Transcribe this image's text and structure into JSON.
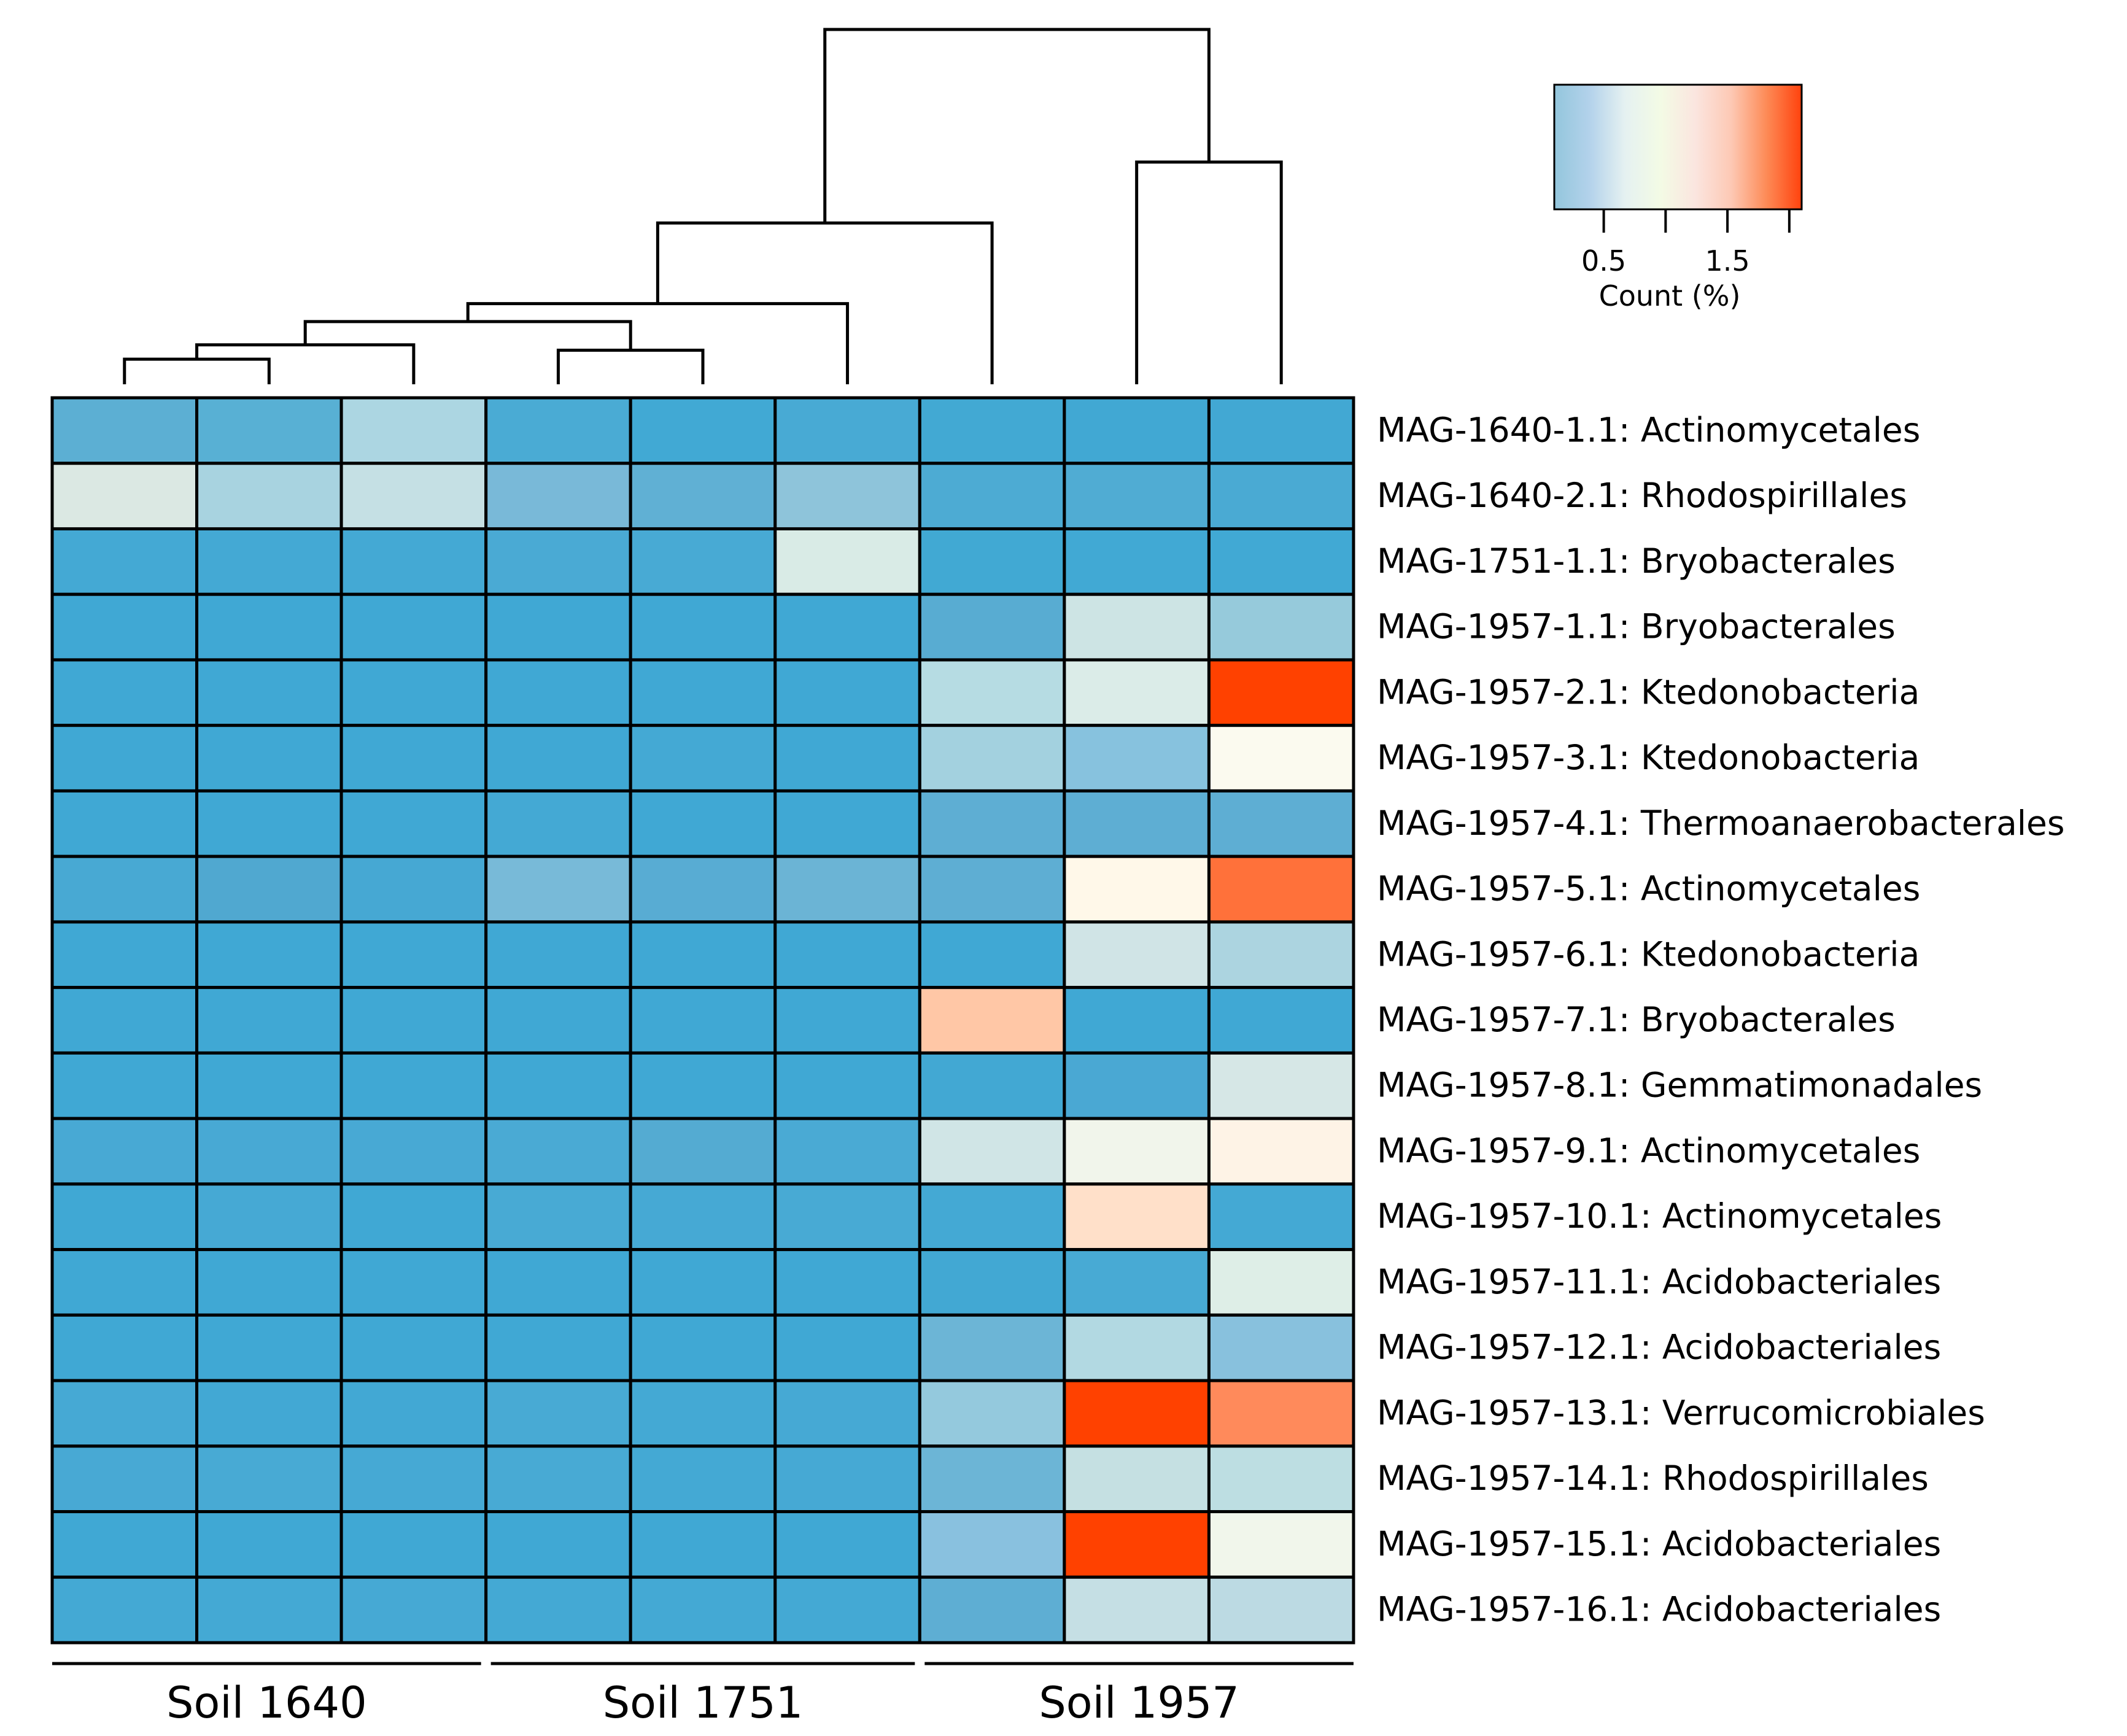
{
  "chart_data": {
    "type": "heatmap",
    "title": "",
    "colorbar": {
      "label": "Count (%)",
      "ticks": [
        0.5,
        1.5
      ],
      "tick_labels": [
        "0.5",
        "1.5"
      ],
      "minor_ticks": [
        1.0,
        2.0
      ],
      "range": [
        0.1,
        2.1
      ],
      "colors": [
        "#93c6dc",
        "#b3d2eb",
        "#e5f1f1",
        "#f3fbe5",
        "#fbe5df",
        "#fdc9b5",
        "#fd8b57",
        "#ff420d"
      ]
    },
    "groups": [
      {
        "label": "Soil 1640",
        "columns": [
          0,
          1,
          2
        ]
      },
      {
        "label": "Soil 1751",
        "columns": [
          3,
          4,
          5
        ]
      },
      {
        "label": "Soil 1957",
        "columns": [
          6,
          7,
          8
        ]
      }
    ],
    "rows": [
      "MAG-1640-1.1: Actinomycetales",
      "MAG-1640-2.1: Rhodospirillales",
      "MAG-1751-1.1: Bryobacterales",
      "MAG-1957-1.1: Bryobacterales",
      "MAG-1957-2.1: Ktedonobacteria",
      "MAG-1957-3.1: Ktedonobacteria",
      "MAG-1957-4.1: Thermoanaerobacterales",
      "MAG-1957-5.1: Actinomycetales",
      "MAG-1957-6.1: Ktedonobacteria",
      "MAG-1957-7.1: Bryobacterales",
      "MAG-1957-8.1: Gemmatimonadales",
      "MAG-1957-9.1: Actinomycetales",
      "MAG-1957-10.1: Actinomycetales",
      "MAG-1957-11.1: Acidobacteriales",
      "MAG-1957-12.1: Acidobacteriales",
      "MAG-1957-13.1: Verrucomicrobiales",
      "MAG-1957-14.1: Rhodospirillales",
      "MAG-1957-15.1: Acidobacteriales",
      "MAG-1957-16.1: Acidobacteriales"
    ],
    "cell_colors": [
      [
        "#5cafd3",
        "#58b0d4",
        "#acd6e2",
        "#4aabd4",
        "#41a9d4",
        "#48aad4",
        "#42a9d3",
        "#41a8d3",
        "#42a8d3"
      ],
      [
        "#dbe8e3",
        "#a8d3e0",
        "#c5e0e4",
        "#79b9d8",
        "#60b0d4",
        "#8ec4da",
        "#4dabd3",
        "#50acd3",
        "#4aaad3"
      ],
      [
        "#44a9d4",
        "#44a9d4",
        "#44a9d4",
        "#4aaad4",
        "#48aad4",
        "#d9ebe6",
        "#41a9d3",
        "#41a9d4",
        "#41a9d4"
      ],
      [
        "#40a8d4",
        "#40a8d4",
        "#40a8d4",
        "#40a8d4",
        "#40a8d4",
        "#40a8d4",
        "#58acd2",
        "#cde4e4",
        "#96cadb"
      ],
      [
        "#40a8d4",
        "#40a8d4",
        "#40a8d4",
        "#40a8d4",
        "#40a8d4",
        "#40a8d4",
        "#b6dce3",
        "#dbece8",
        "#ff4100"
      ],
      [
        "#40a8d4",
        "#40a8d4",
        "#40a8d4",
        "#40a8d4",
        "#44a9d4",
        "#40a8d4",
        "#a3d1df",
        "#87c2de",
        "#fbfaef"
      ],
      [
        "#40a8d4",
        "#40a8d4",
        "#40a8d4",
        "#44a9d4",
        "#40a8d4",
        "#40a8d4",
        "#5eaed3",
        "#5eaed3",
        "#5eaed3"
      ],
      [
        "#48a9d3",
        "#50a8d0",
        "#46a8d3",
        "#78bad8",
        "#58acd3",
        "#6bb4d5",
        "#5eaed3",
        "#fff8e9",
        "#ff713a"
      ],
      [
        "#40a8d4",
        "#40a8d4",
        "#40a8d4",
        "#40a8d4",
        "#40a8d4",
        "#40a8d4",
        "#40a8d4",
        "#d0e4e6",
        "#acd4e0"
      ],
      [
        "#40a8d4",
        "#40a8d4",
        "#40a8d4",
        "#40a8d4",
        "#40a8d4",
        "#40a8d4",
        "#ffc7a6",
        "#40a8d4",
        "#40a8d4"
      ],
      [
        "#40a8d4",
        "#40a8d4",
        "#40a8d4",
        "#40a8d4",
        "#40a8d4",
        "#40a8d4",
        "#42a8d3",
        "#4aa8d3",
        "#d6e7e6"
      ],
      [
        "#48a9d4",
        "#48a9d4",
        "#48a9d4",
        "#4aaad4",
        "#54abd2",
        "#4aaad4",
        "#d0e5e6",
        "#f1f5eb",
        "#fef3e6"
      ],
      [
        "#40a8d4",
        "#46a9d4",
        "#40a8d4",
        "#48aad4",
        "#46a9d4",
        "#48aad4",
        "#44a9d4",
        "#ffe0c9",
        "#44a9d4"
      ],
      [
        "#40a8d4",
        "#40a8d4",
        "#40a8d4",
        "#40a8d4",
        "#40a8d4",
        "#40a8d4",
        "#42a8d3",
        "#48aad4",
        "#deeee7"
      ],
      [
        "#40a8d4",
        "#40a8d4",
        "#40a8d4",
        "#40a8d4",
        "#40a8d4",
        "#40a8d4",
        "#6cb5d6",
        "#b2d9e2",
        "#88c1dd"
      ],
      [
        "#46a9d4",
        "#42a8d4",
        "#42a8d4",
        "#48aad4",
        "#44a9d4",
        "#46a9d4",
        "#94c9dd",
        "#ff4100",
        "#ff8a5b"
      ],
      [
        "#48a9d4",
        "#48aad4",
        "#46a9d4",
        "#48aad4",
        "#44a9d4",
        "#46a9d4",
        "#6cb5d6",
        "#c5e0e2",
        "#bddee2"
      ],
      [
        "#40a8d4",
        "#40a8d4",
        "#40a8d4",
        "#40a8d4",
        "#40a8d4",
        "#40a8d4",
        "#89c1df",
        "#ff4100",
        "#f1f6eb"
      ],
      [
        "#44a9d4",
        "#44a9d4",
        "#46a9d4",
        "#44a9d4",
        "#44a9d4",
        "#44a9d4",
        "#5eaed3",
        "#c5dfe4",
        "#bcdae3"
      ]
    ],
    "dendrogram": {
      "leaves": [
        0,
        1,
        2,
        3,
        4,
        5,
        6,
        7,
        8
      ],
      "merges": [
        [
          0,
          1
        ],
        [
          3,
          4
        ],
        [
          9,
          2
        ],
        [
          7,
          8
        ],
        [
          11,
          10
        ],
        [
          13,
          5
        ],
        [
          14,
          6
        ],
        [
          15,
          12
        ]
      ],
      "merge_heights": [
        0.7,
        0.95,
        1.1,
        6.2,
        1.75,
        2.25,
        4.5,
        9.9
      ]
    }
  }
}
